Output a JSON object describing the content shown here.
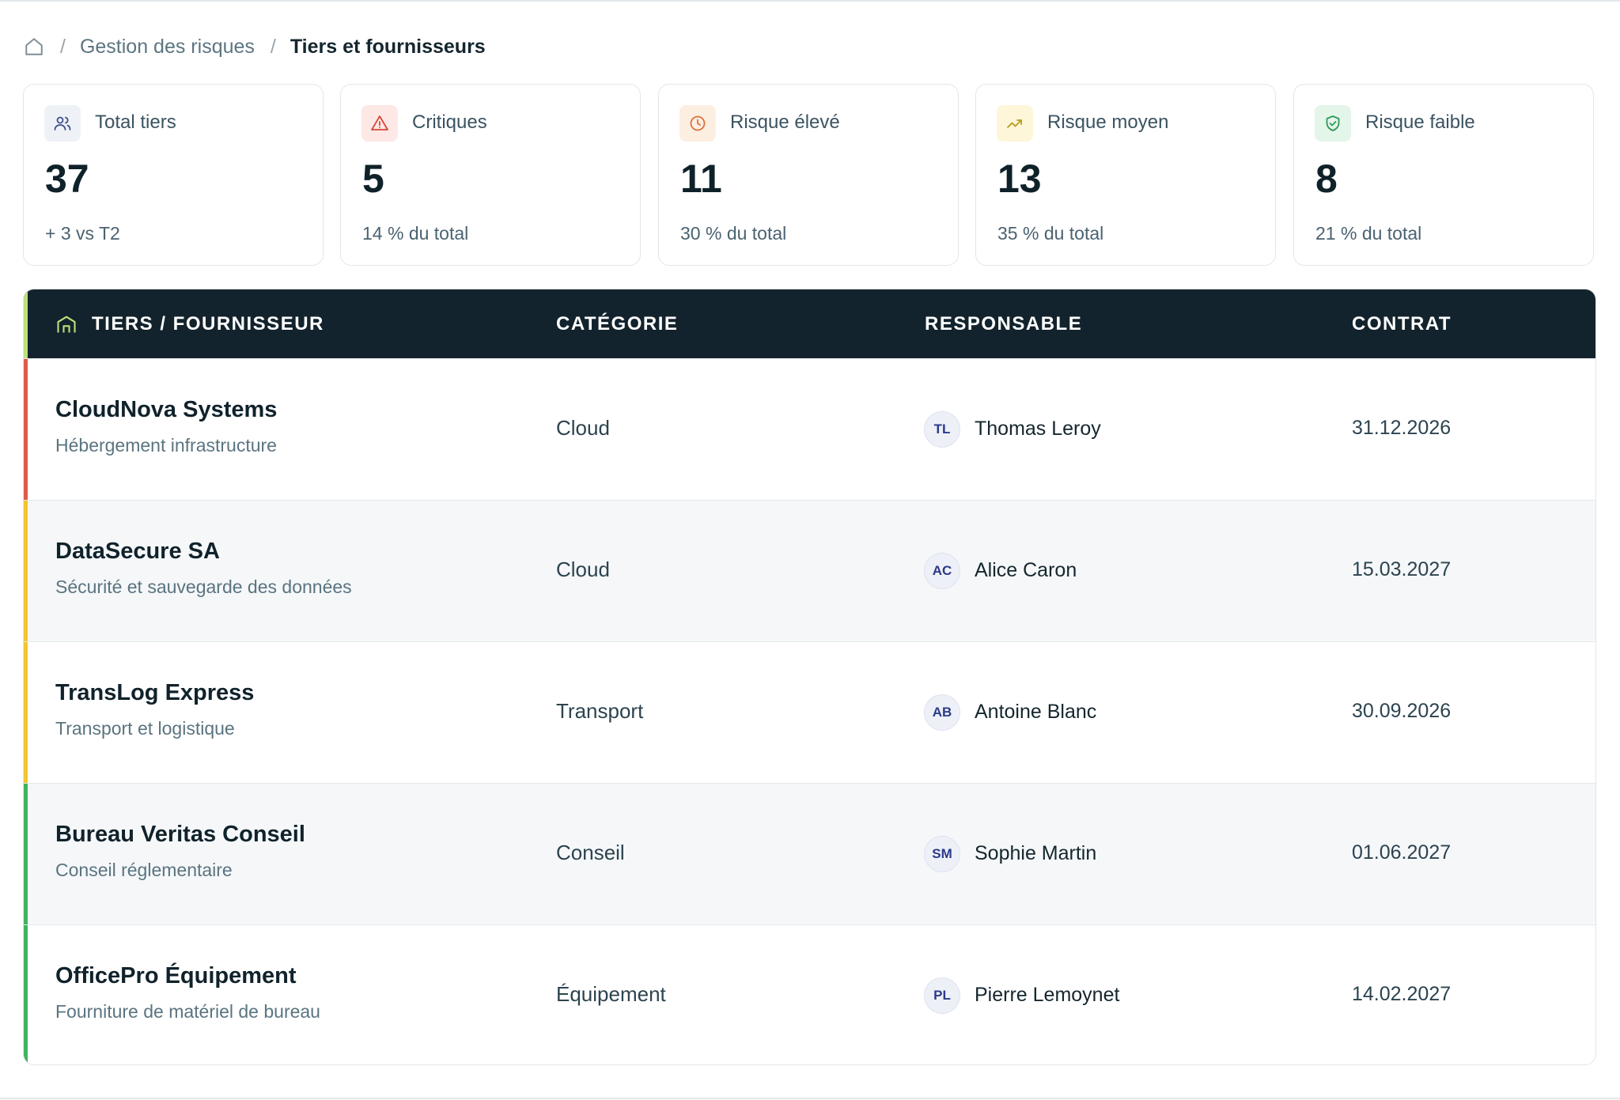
{
  "breadcrumb": {
    "home_icon": "home-icon",
    "items": [
      "Gestion des risques",
      "Tiers et fournisseurs"
    ]
  },
  "stats": [
    {
      "label": "Total tiers",
      "value": "37",
      "sub": "+ 3 vs T2",
      "icon": "users-icon",
      "icon_bg": "#eef2f7",
      "icon_color": "#3b4f8f"
    },
    {
      "label": "Critiques",
      "value": "5",
      "sub": "14 % du total",
      "icon": "warning-triangle-icon",
      "icon_bg": "#fde8e6",
      "icon_color": "#d9473b"
    },
    {
      "label": "Risque élevé",
      "value": "11",
      "sub": "30 % du total",
      "icon": "clock-icon",
      "icon_bg": "#fdeee2",
      "icon_color": "#d9733b"
    },
    {
      "label": "Risque moyen",
      "value": "13",
      "sub": "35 % du total",
      "icon": "trend-up-icon",
      "icon_bg": "#fdf6d8",
      "icon_color": "#b99a1c"
    },
    {
      "label": "Risque faible",
      "value": "8",
      "sub": "21 % du total",
      "icon": "shield-check-icon",
      "icon_bg": "#e4f5ea",
      "icon_color": "#2f9a55"
    }
  ],
  "table": {
    "columns": [
      "TIERS / FOURNISSEUR",
      "CATÉGORIE",
      "RESPONSABLE",
      "CONTRAT"
    ],
    "header_icon": "building-icon",
    "header_accent": "#bfe07a",
    "rows": [
      {
        "name": "CloudNova Systems",
        "desc": "Hébergement infrastructure",
        "category": "Cloud",
        "initials": "TL",
        "responsible": "Thomas Leroy",
        "contract": "31.12.2026",
        "risk_color": "#e05a4a"
      },
      {
        "name": "DataSecure SA",
        "desc": "Sécurité et sauvegarde des données",
        "category": "Cloud",
        "initials": "AC",
        "responsible": "Alice Caron",
        "contract": "15.03.2027",
        "risk_color": "#f2c531"
      },
      {
        "name": "TransLog Express",
        "desc": "Transport et logistique",
        "category": "Transport",
        "initials": "AB",
        "responsible": "Antoine Blanc",
        "contract": "30.09.2026",
        "risk_color": "#f2c531"
      },
      {
        "name": "Bureau Veritas Conseil",
        "desc": "Conseil réglementaire",
        "category": "Conseil",
        "initials": "SM",
        "responsible": "Sophie Martin",
        "contract": "01.06.2027",
        "risk_color": "#3fb35f"
      },
      {
        "name": "OfficePro Équipement",
        "desc": "Fourniture de matériel de bureau",
        "category": "Équipement",
        "initials": "PL",
        "responsible": "Pierre Lemoynet",
        "contract": "14.02.2027",
        "risk_color": "#3fb35f"
      }
    ]
  }
}
